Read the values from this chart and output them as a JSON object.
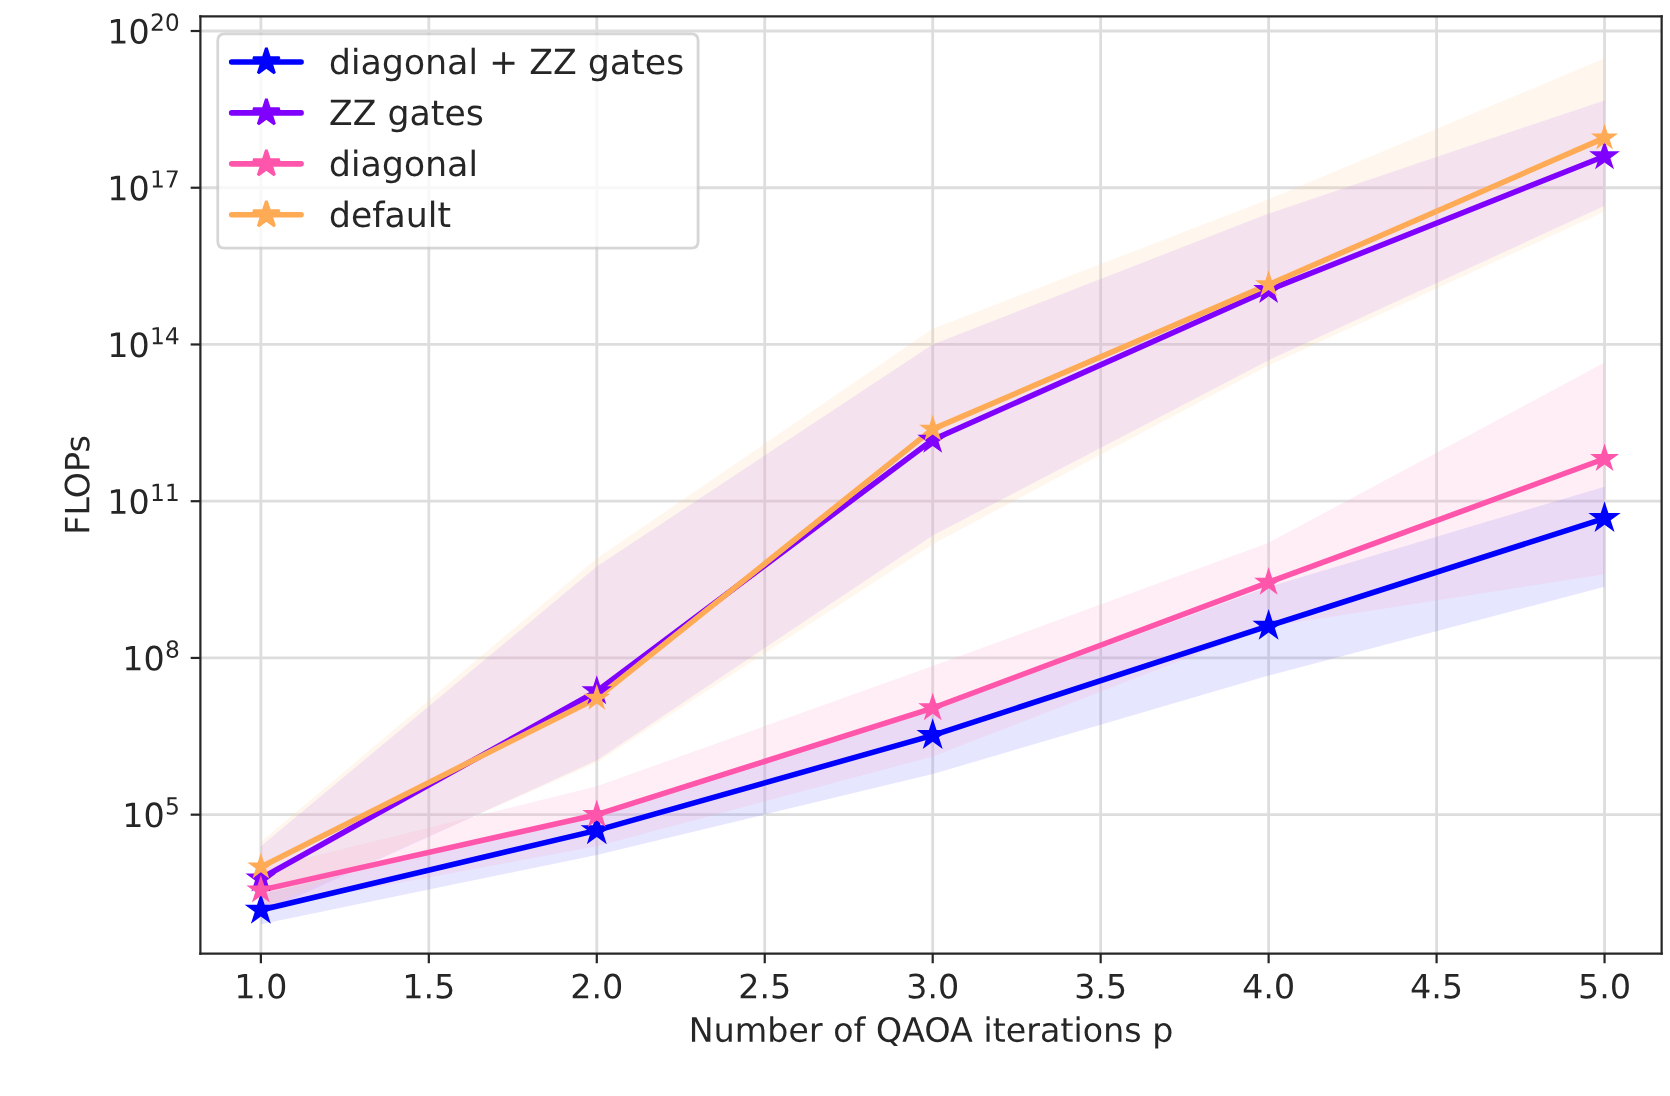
{
  "chart_data": {
    "type": "line",
    "xlabel": "Number of QAOA iterations p",
    "ylabel": "FLOPs",
    "x": [
      1,
      2,
      3,
      4,
      5
    ],
    "series": [
      {
        "name": "diagonal + ZZ gates",
        "color": "#0000ff",
        "values": [
          1500.0,
          50000.0,
          3300000.0,
          410000000.0,
          47000000000.0
        ],
        "lower": [
          800.0,
          17000.0,
          600000.0,
          46000000.0,
          2300000000.0
        ],
        "upper": [
          3000.0,
          100000.0,
          10000000.0,
          2300000000.0,
          190000000000.0
        ]
      },
      {
        "name": "ZZ gates",
        "color": "#8000ff",
        "values": [
          6000.0,
          23000000.0,
          1500000000000.0,
          1100000000000000.0,
          4e+17
        ],
        "lower": [
          1300.0,
          1100000.0,
          22000000000.0,
          50000000000000.0,
          4.5e+16
        ],
        "upper": [
          25000.0,
          5600000000.0,
          100000000000000.0,
          3.2e+16,
          4.7e+18
        ]
      },
      {
        "name": "diagonal",
        "color": "#ff55aa",
        "values": [
          3600.0,
          100000.0,
          11000000.0,
          2800000000.0,
          650000000000.0
        ],
        "lower": [
          1600.0,
          25000.0,
          1300000.0,
          400000000.0,
          4000000000.0
        ],
        "upper": [
          9000.0,
          350000.0,
          70000000.0,
          16000000000.0,
          45000000000000.0
        ]
      },
      {
        "name": "default",
        "color": "#ffaa55",
        "values": [
          10000.0,
          17000000.0,
          2400000000000.0,
          1400000000000000.0,
          9e+17
        ],
        "lower": [
          1500.0,
          1000000.0,
          15000000000.0,
          40000000000000.0,
          3.5e+16
        ],
        "upper": [
          30000.0,
          8000000000.0,
          200000000000000.0,
          6e+16,
          3e+19
        ]
      }
    ],
    "xlim": [
      0.82,
      5.17
    ],
    "xticks": [
      {
        "value": 1.0,
        "label": "1.0"
      },
      {
        "value": 1.5,
        "label": "1.5"
      },
      {
        "value": 2.0,
        "label": "2.0"
      },
      {
        "value": 2.5,
        "label": "2.5"
      },
      {
        "value": 3.0,
        "label": "3.0"
      },
      {
        "value": 3.5,
        "label": "3.5"
      },
      {
        "value": 4.0,
        "label": "4.0"
      },
      {
        "value": 4.5,
        "label": "4.5"
      },
      {
        "value": 5.0,
        "label": "5.0"
      }
    ],
    "ylim": [
      220,
      1.9e+20
    ],
    "yticks": [
      {
        "value": 100000.0,
        "label": "10$^{5}$"
      },
      {
        "value": 100000000.0,
        "label": "10$^{8}$"
      },
      {
        "value": 100000000000.0,
        "label": "10$^{11}$"
      },
      {
        "value": 100000000000000.0,
        "label": "10$^{14}$"
      },
      {
        "value": 1e+17,
        "label": "10$^{17}$"
      },
      {
        "value": 1e+20,
        "label": "10$^{20}$"
      }
    ],
    "log": "y",
    "grid": true,
    "legend": "top left",
    "marker": "star",
    "line_style": "solid"
  }
}
